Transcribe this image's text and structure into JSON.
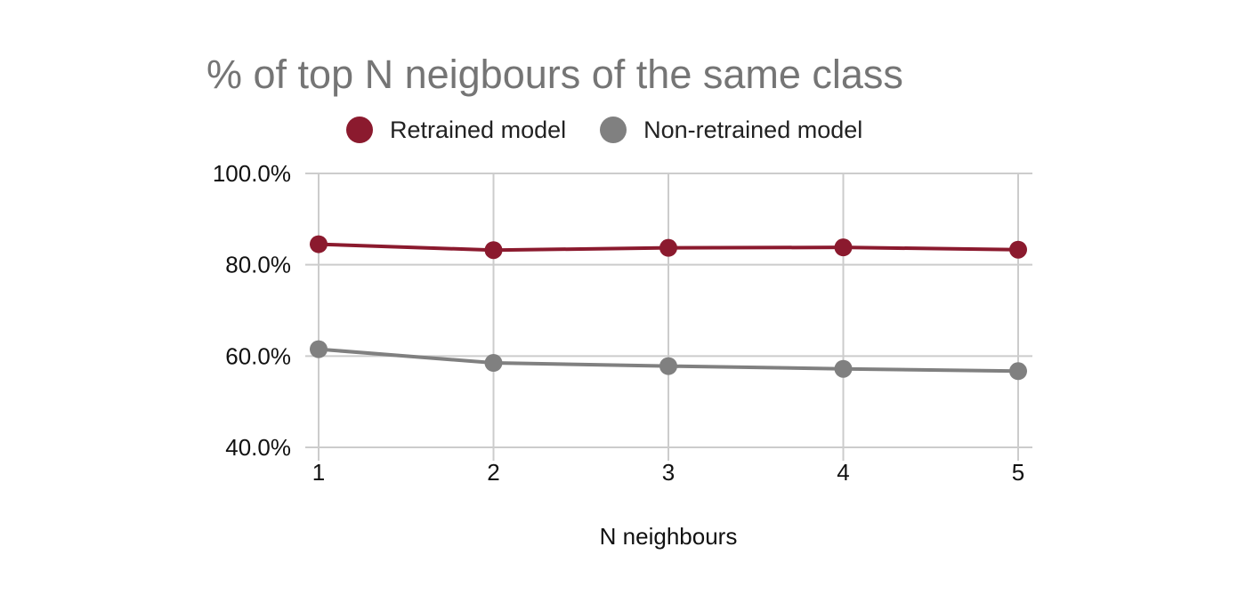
{
  "chart_data": {
    "type": "line",
    "title": "% of top N neigbours of the same class",
    "xlabel": "N neighbours",
    "ylabel": "",
    "x": [
      1,
      2,
      3,
      4,
      5
    ],
    "x_tick_labels": [
      "1",
      "2",
      "3",
      "4",
      "5"
    ],
    "ylim": [
      40,
      100
    ],
    "y_ticks": [
      40,
      60,
      80,
      100
    ],
    "y_tick_labels": [
      "40.0%",
      "60.0%",
      "80.0%",
      "100.0%"
    ],
    "grid": true,
    "legend_position": "top",
    "series": [
      {
        "name": "Retrained model",
        "color": "#8b1a2e",
        "values": [
          84.5,
          83.2,
          83.7,
          83.8,
          83.3
        ]
      },
      {
        "name": "Non-retrained model",
        "color": "#808080",
        "values": [
          61.5,
          58.5,
          57.8,
          57.2,
          56.7
        ]
      }
    ]
  }
}
